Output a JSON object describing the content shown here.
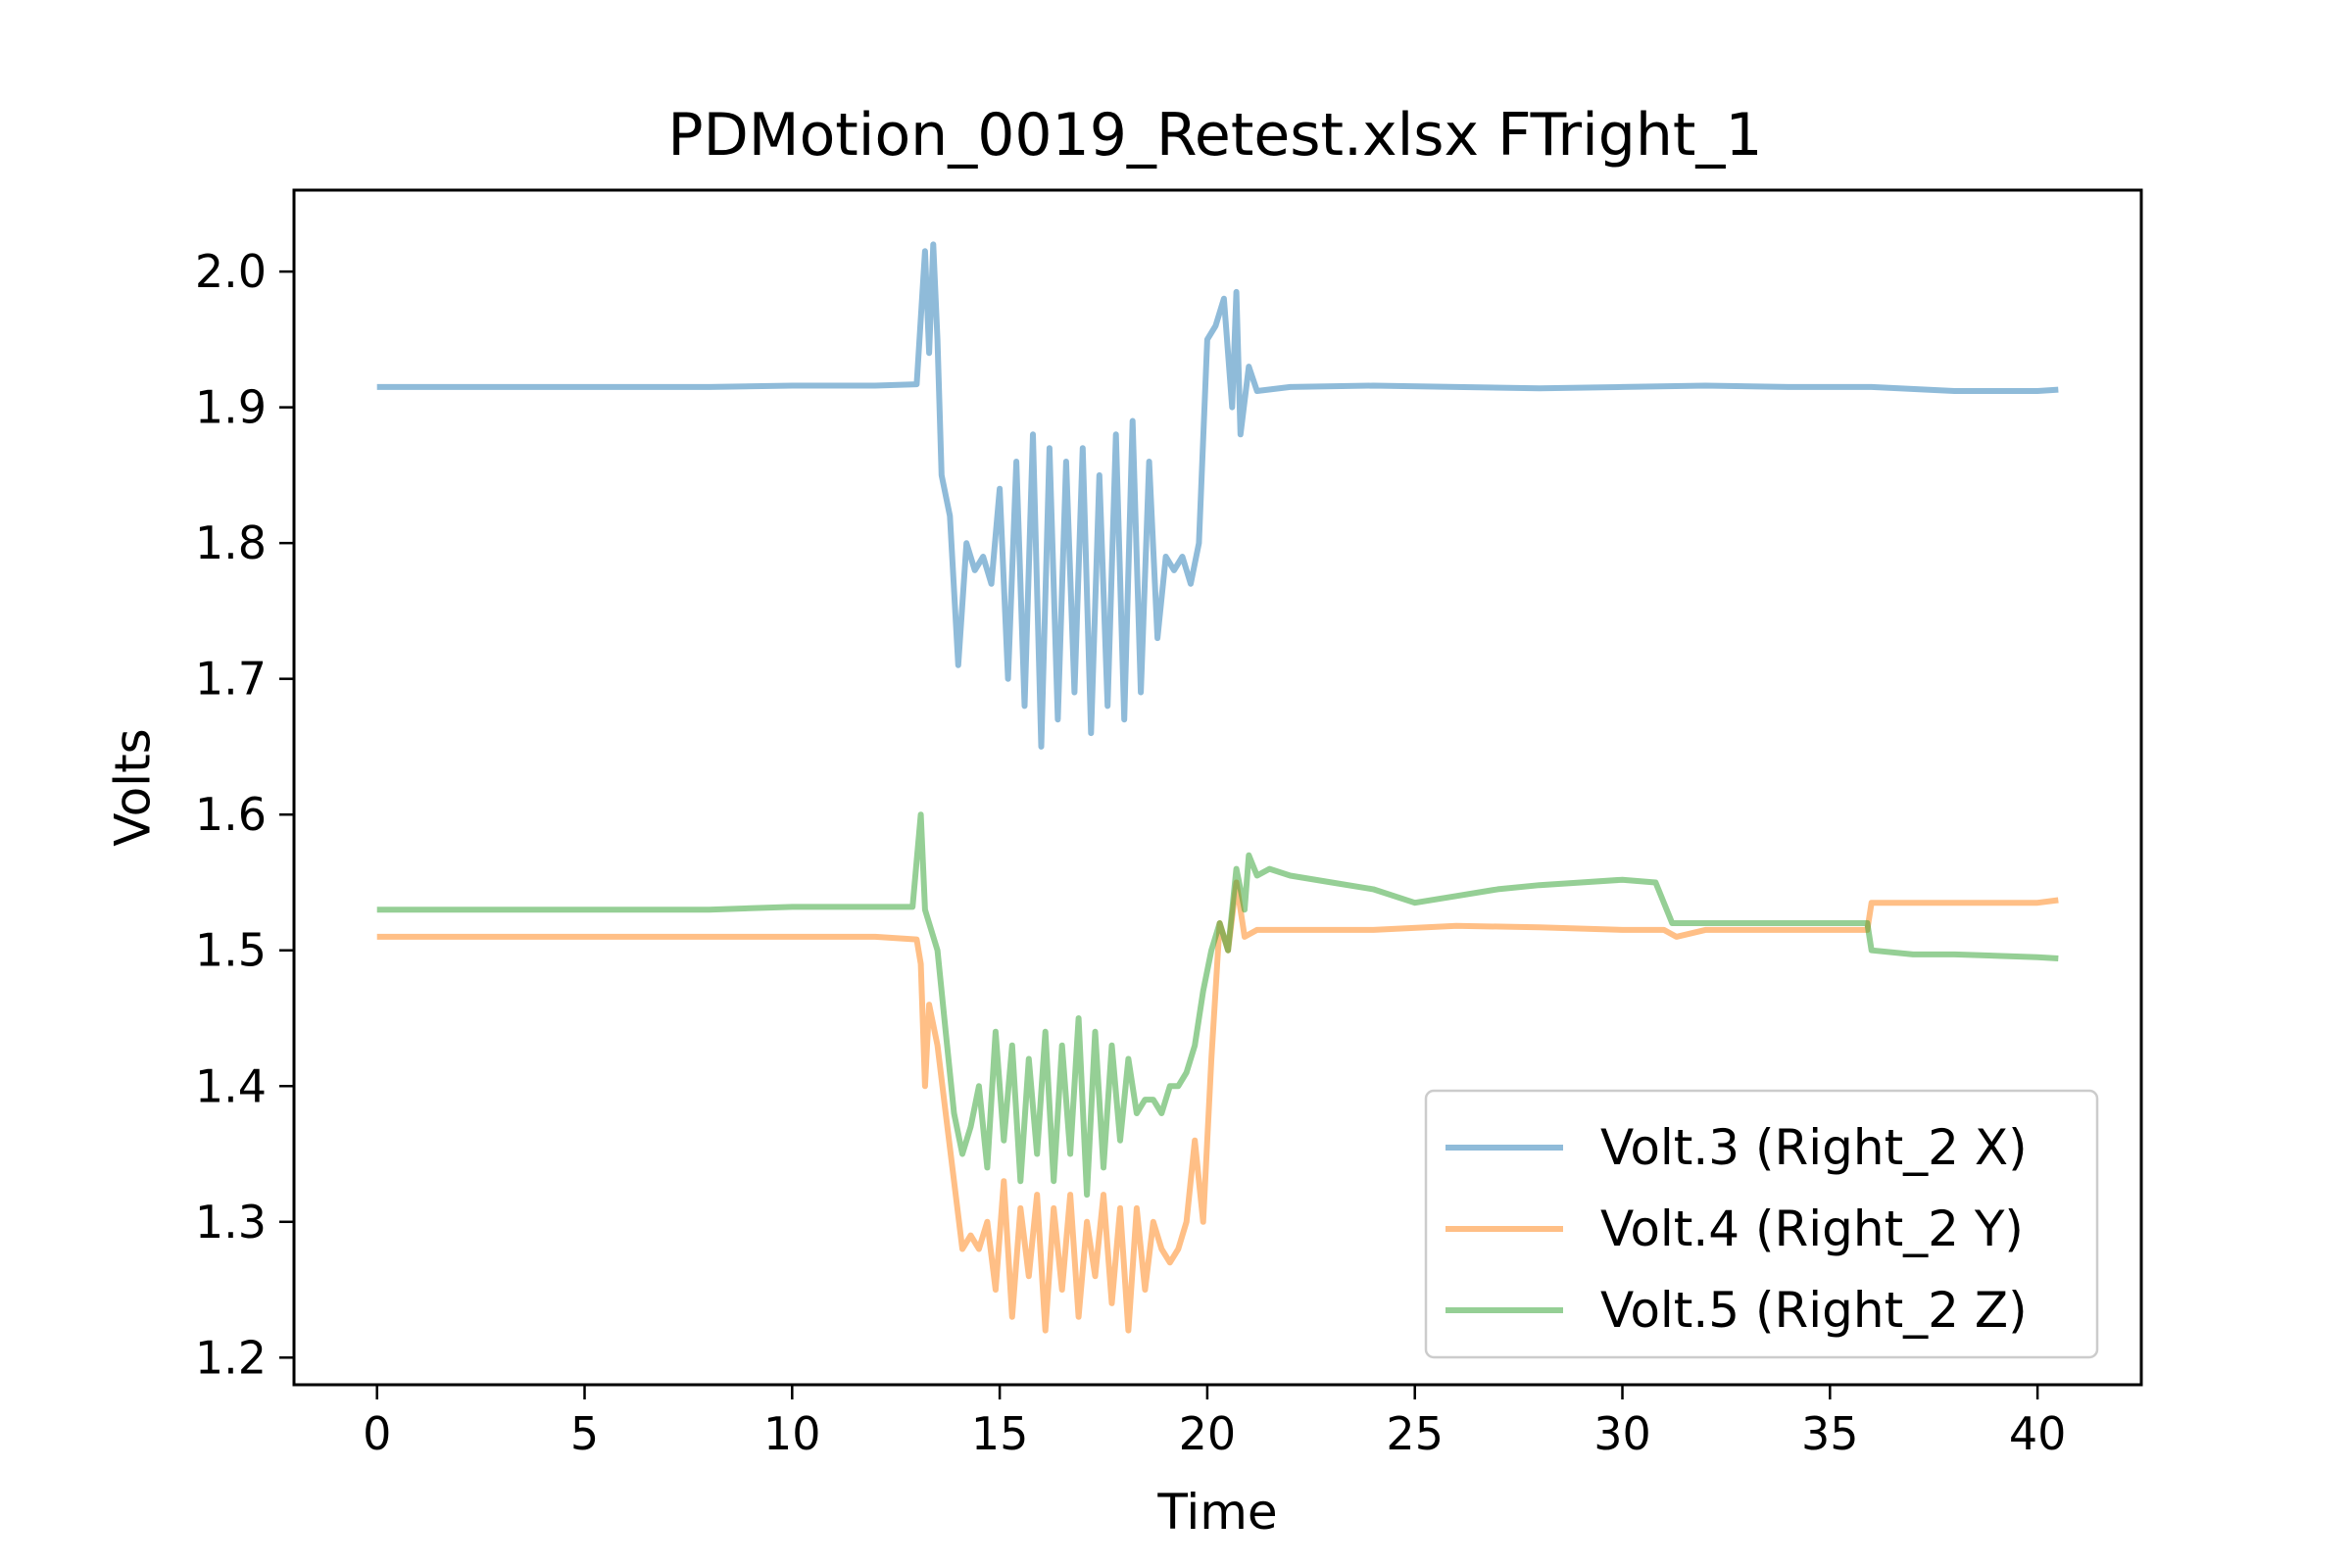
{
  "chart_data": {
    "type": "line",
    "title": "PDMotion_0019_Retest.xlsx FTright_1",
    "xlabel": "Time",
    "ylabel": "Volts",
    "xlim": [
      -2,
      42.5
    ],
    "ylim": [
      1.18,
      2.06
    ],
    "xticks": [
      0,
      5,
      10,
      15,
      20,
      25,
      30,
      35,
      40
    ],
    "xtick_labels": [
      "0",
      "5",
      "10",
      "15",
      "20",
      "25",
      "30",
      "35",
      "40"
    ],
    "yticks": [
      1.2,
      1.3,
      1.4,
      1.5,
      1.6,
      1.7,
      1.8,
      1.9,
      2.0
    ],
    "ytick_labels": [
      "1.2",
      "1.3",
      "1.4",
      "1.5",
      "1.6",
      "1.7",
      "1.8",
      "1.9",
      "2.0"
    ],
    "legend_position": "lower-right",
    "grid": false,
    "series": [
      {
        "name": "Volt.3 (Right_2 X)",
        "color": "#1f77b4",
        "alpha": 0.5,
        "x": [
          0,
          2,
          4,
          6,
          8,
          10,
          12,
          13.0,
          13.2,
          13.3,
          13.4,
          13.5,
          13.6,
          13.8,
          14.0,
          14.2,
          14.4,
          14.6,
          14.8,
          15.0,
          15.2,
          15.4,
          15.6,
          15.8,
          16.0,
          16.2,
          16.4,
          16.6,
          16.8,
          17.0,
          17.2,
          17.4,
          17.6,
          17.8,
          18.0,
          18.2,
          18.4,
          18.6,
          18.8,
          19.0,
          19.2,
          19.4,
          19.6,
          19.8,
          20.0,
          20.2,
          20.4,
          20.6,
          20.7,
          20.8,
          21.0,
          21.2,
          22,
          24,
          26,
          28,
          30,
          32,
          34,
          36,
          38,
          40,
          40.5
        ],
        "y": [
          1.915,
          1.915,
          1.915,
          1.915,
          1.915,
          1.916,
          1.916,
          1.917,
          2.015,
          1.94,
          2.02,
          1.95,
          1.85,
          1.82,
          1.71,
          1.8,
          1.78,
          1.79,
          1.77,
          1.84,
          1.7,
          1.86,
          1.68,
          1.88,
          1.65,
          1.87,
          1.67,
          1.86,
          1.69,
          1.87,
          1.66,
          1.85,
          1.68,
          1.88,
          1.67,
          1.89,
          1.69,
          1.86,
          1.73,
          1.79,
          1.78,
          1.79,
          1.77,
          1.8,
          1.95,
          1.96,
          1.98,
          1.9,
          1.985,
          1.88,
          1.93,
          1.912,
          1.915,
          1.916,
          1.915,
          1.914,
          1.915,
          1.916,
          1.915,
          1.915,
          1.912,
          1.912,
          1.913
        ]
      },
      {
        "name": "Volt.4 (Right_2 Y)",
        "color": "#ff7f0e",
        "alpha": 0.5,
        "x": [
          0,
          2,
          4,
          6,
          8,
          10,
          12,
          13.0,
          13.1,
          13.2,
          13.3,
          13.5,
          13.7,
          13.9,
          14.1,
          14.3,
          14.5,
          14.7,
          14.9,
          15.1,
          15.3,
          15.5,
          15.7,
          15.9,
          16.1,
          16.3,
          16.5,
          16.7,
          16.9,
          17.1,
          17.3,
          17.5,
          17.7,
          17.9,
          18.1,
          18.3,
          18.5,
          18.7,
          18.9,
          19.1,
          19.3,
          19.5,
          19.7,
          19.9,
          20.1,
          20.3,
          20.5,
          20.7,
          20.9,
          21.2,
          22,
          24,
          26,
          28,
          30,
          31,
          31.3,
          32,
          34,
          35.9,
          36.0,
          37,
          38,
          40,
          40.5
        ],
        "y": [
          1.51,
          1.51,
          1.51,
          1.51,
          1.51,
          1.51,
          1.51,
          1.508,
          1.49,
          1.4,
          1.46,
          1.43,
          1.38,
          1.33,
          1.28,
          1.29,
          1.28,
          1.3,
          1.25,
          1.33,
          1.23,
          1.31,
          1.26,
          1.32,
          1.22,
          1.31,
          1.25,
          1.32,
          1.23,
          1.3,
          1.26,
          1.32,
          1.24,
          1.31,
          1.22,
          1.31,
          1.25,
          1.3,
          1.28,
          1.27,
          1.28,
          1.3,
          1.36,
          1.3,
          1.42,
          1.52,
          1.5,
          1.55,
          1.51,
          1.515,
          1.515,
          1.515,
          1.518,
          1.517,
          1.515,
          1.515,
          1.51,
          1.515,
          1.515,
          1.515,
          1.535,
          1.535,
          1.535,
          1.535,
          1.537
        ]
      },
      {
        "name": "Volt.5 (Right_2 Z)",
        "color": "#2ca02c",
        "alpha": 0.5,
        "x": [
          0,
          2,
          4,
          6,
          8,
          10,
          12,
          12.9,
          13.1,
          13.2,
          13.3,
          13.5,
          13.7,
          13.9,
          14.1,
          14.3,
          14.5,
          14.7,
          14.9,
          15.1,
          15.3,
          15.5,
          15.7,
          15.9,
          16.1,
          16.3,
          16.5,
          16.7,
          16.9,
          17.1,
          17.3,
          17.5,
          17.7,
          17.9,
          18.1,
          18.3,
          18.5,
          18.7,
          18.9,
          19.1,
          19.3,
          19.5,
          19.7,
          19.9,
          20.1,
          20.3,
          20.5,
          20.7,
          20.9,
          21.0,
          21.2,
          21.5,
          22,
          23,
          24,
          25,
          26,
          27,
          28,
          29,
          30,
          30.8,
          31.2,
          32,
          34,
          35.9,
          36.0,
          37,
          38,
          40,
          40.5
        ],
        "y": [
          1.53,
          1.53,
          1.53,
          1.53,
          1.53,
          1.532,
          1.532,
          1.532,
          1.6,
          1.53,
          1.52,
          1.5,
          1.44,
          1.38,
          1.35,
          1.37,
          1.4,
          1.34,
          1.44,
          1.36,
          1.43,
          1.33,
          1.42,
          1.35,
          1.44,
          1.33,
          1.43,
          1.35,
          1.45,
          1.32,
          1.44,
          1.34,
          1.43,
          1.36,
          1.42,
          1.38,
          1.39,
          1.39,
          1.38,
          1.4,
          1.4,
          1.41,
          1.43,
          1.47,
          1.5,
          1.52,
          1.5,
          1.56,
          1.53,
          1.57,
          1.555,
          1.56,
          1.555,
          1.55,
          1.545,
          1.535,
          1.54,
          1.545,
          1.548,
          1.55,
          1.552,
          1.55,
          1.52,
          1.52,
          1.52,
          1.52,
          1.5,
          1.497,
          1.497,
          1.495,
          1.494
        ]
      }
    ]
  }
}
